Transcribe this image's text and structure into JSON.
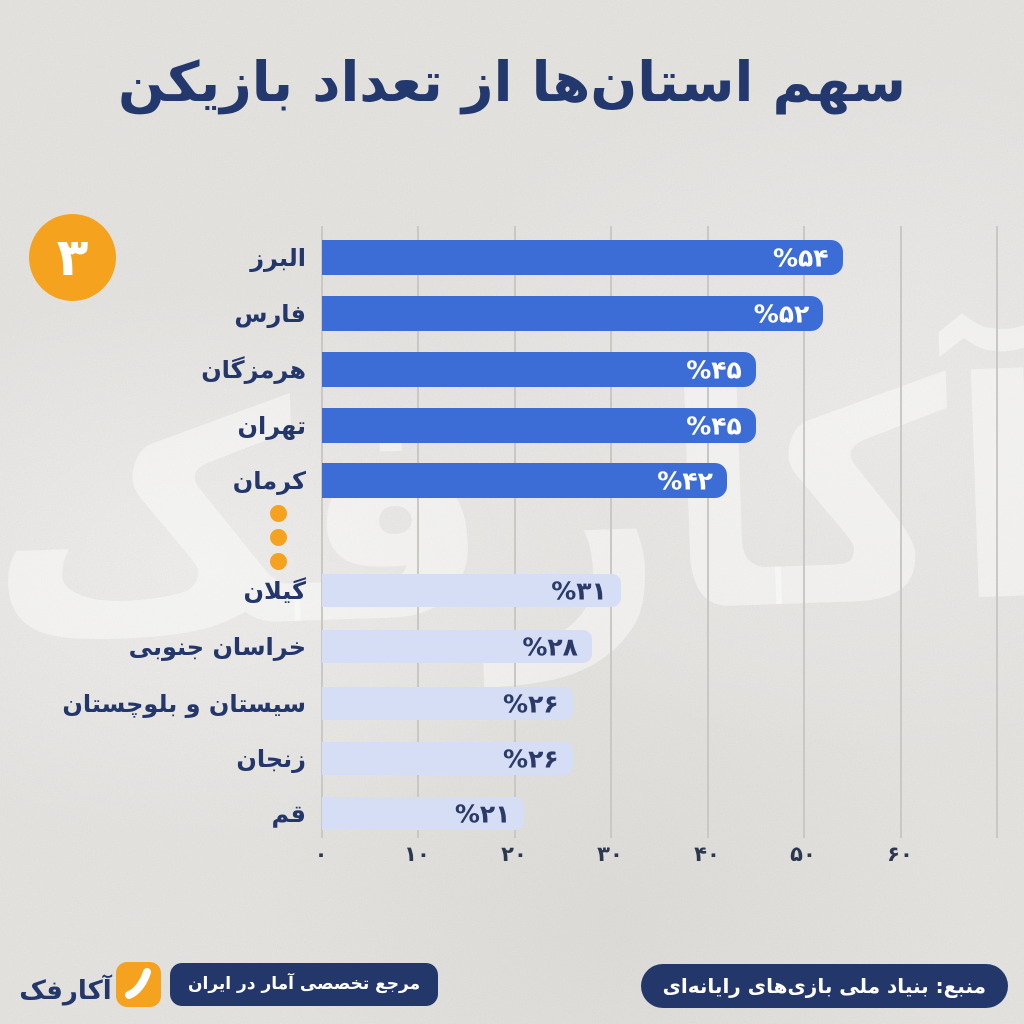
{
  "page": {
    "title": "سهم استان‌ها از تعداد بازیکن",
    "badge_number": "۳",
    "background_color": "#ebe9e6",
    "navy": "#24376b",
    "accent_orange": "#f5a31f",
    "watermark_text": "آکارفک"
  },
  "chart_data": {
    "type": "bar",
    "orientation": "horizontal",
    "title": "سهم استان‌ها از تعداد بازیکن",
    "unit": "%",
    "xlim": [
      0,
      60
    ],
    "grid": true,
    "x_tick_values": [
      0,
      10,
      20,
      30,
      40,
      50,
      60
    ],
    "x_ticks": [
      "۰",
      "۱۰",
      "۲۰",
      "۳۰",
      "۴۰",
      "۵۰",
      "۶۰"
    ],
    "categories": [
      "البرز",
      "فارس",
      "هرمزگان",
      "تهران",
      "کرمان",
      "گیلان",
      "خراسان جنوبی",
      "سیستان و بلوچستان",
      "زنجان",
      "قم"
    ],
    "values": [
      54,
      52,
      45,
      45,
      42,
      31,
      28,
      26,
      26,
      21
    ],
    "rows": [
      {
        "label": "البرز",
        "value": 54,
        "value_label": "%۵۴",
        "group": "top"
      },
      {
        "label": "فارس",
        "value": 52,
        "value_label": "%۵۲",
        "group": "top"
      },
      {
        "label": "هرمزگان",
        "value": 45,
        "value_label": "%۴۵",
        "group": "top"
      },
      {
        "label": "تهران",
        "value": 45,
        "value_label": "%۴۵",
        "group": "top"
      },
      {
        "label": "کرمان",
        "value": 42,
        "value_label": "%۴۲",
        "group": "top"
      },
      {
        "label": "گیلان",
        "value": 31,
        "value_label": "%۳۱",
        "group": "bottom"
      },
      {
        "label": "خراسان جنوبی",
        "value": 28,
        "value_label": "%۲۸",
        "group": "bottom"
      },
      {
        "label": "سیستان و بلوچستان",
        "value": 26,
        "value_label": "%۲۶",
        "group": "bottom"
      },
      {
        "label": "زنجان",
        "value": 26,
        "value_label": "%۲۶",
        "group": "bottom"
      },
      {
        "label": "قم",
        "value": 21,
        "value_label": "%۲۱",
        "group": "bottom"
      }
    ],
    "separator": "three-orange-dots-between-rank-5-and-lower-group",
    "colors": {
      "top_bars": "#3c6dd6",
      "bottom_bars": "#d5def4",
      "value_text_top": "#ffffff",
      "value_text_bottom": "#2b3a69",
      "gridline": "#c9c8c4"
    }
  },
  "footer": {
    "brand_name": "آکارفک",
    "brand_tagline": "مرجع تخصصی آمار در ایران",
    "source_label": "منبع: بنیاد ملی بازی‌های رایانه‌ای"
  }
}
